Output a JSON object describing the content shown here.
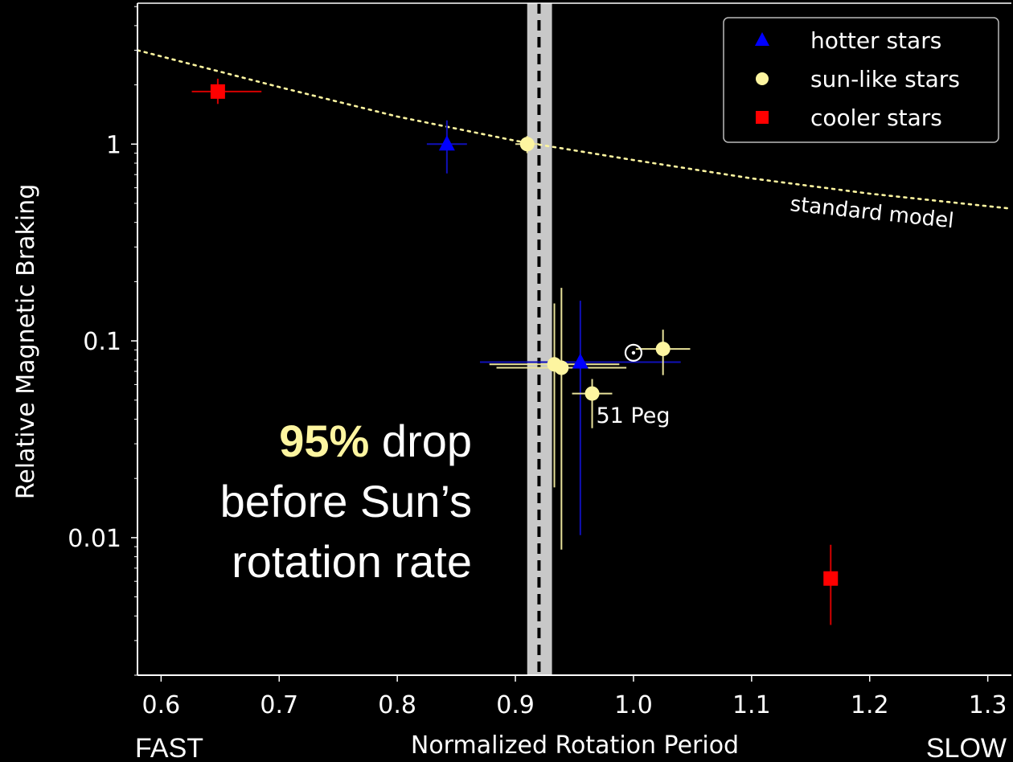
{
  "chart_data": {
    "type": "scatter",
    "xlabel": "Normalized Rotation Period",
    "ylabel": "Relative Magnetic Braking",
    "x_left_label": "FAST",
    "x_right_label": "SLOW",
    "xlim": [
      0.58,
      1.32
    ],
    "ylim": [
      0.002,
      5.2
    ],
    "yscale": "log",
    "x_ticks": [
      {
        "value": 0.6,
        "label": "0.6"
      },
      {
        "value": 0.7,
        "label": "0.7"
      },
      {
        "value": 0.8,
        "label": "0.8"
      },
      {
        "value": 0.9,
        "label": "0.9"
      },
      {
        "value": 1.0,
        "label": "1.0"
      },
      {
        "value": 1.1,
        "label": "1.1"
      },
      {
        "value": 1.2,
        "label": "1.2"
      },
      {
        "value": 1.3,
        "label": "1.3"
      }
    ],
    "y_ticks": [
      {
        "value": 1,
        "label": "1"
      },
      {
        "value": 0.1,
        "label": "0.1"
      },
      {
        "value": 0.01,
        "label": "0.01"
      }
    ],
    "legend_position": "top-right",
    "series": [
      {
        "name": "hotter stars",
        "marker": "triangle",
        "color": "#0000ff",
        "errcolor": "#1010b8",
        "points": [
          {
            "x": 0.842,
            "y": 1.0,
            "xerr": [
              0.017,
              0.017
            ],
            "yerr": [
              0.71,
              1.32
            ]
          },
          {
            "x": 0.955,
            "y": 0.078,
            "xerr": [
              0.085,
              0.085
            ],
            "yerr": [
              0.0103,
              0.16
            ]
          }
        ]
      },
      {
        "name": "sun-like stars",
        "marker": "circle",
        "color": "#fdf5a0",
        "errcolor": "#e8e29a",
        "points": [
          {
            "x": 0.91,
            "y": 1.0,
            "xerr": [
              0.01,
              0.01
            ],
            "yerr": [
              0.9,
              1.1
            ]
          },
          {
            "x": 0.933,
            "y": 0.076,
            "xerr": [
              0.055,
              0.055
            ],
            "yerr": [
              0.018,
              0.155
            ]
          },
          {
            "x": 0.939,
            "y": 0.073,
            "xerr": [
              0.055,
              0.055
            ],
            "yerr": [
              0.0087,
              0.186
            ]
          },
          {
            "x": 0.965,
            "y": 0.054,
            "xerr": [
              0.017,
              0.017
            ],
            "yerr": [
              0.036,
              0.064
            ]
          },
          {
            "x": 1.025,
            "y": 0.091,
            "xerr": [
              0.023,
              0.023
            ],
            "yerr": [
              0.067,
              0.114
            ]
          }
        ]
      },
      {
        "name": "cooler stars",
        "marker": "square",
        "color": "#ff0000",
        "errcolor": "#d40000",
        "points": [
          {
            "x": 0.648,
            "y": 1.85,
            "xerr": [
              0.022,
              0.037
            ],
            "yerr": [
              1.6,
              2.15
            ]
          },
          {
            "x": 1.167,
            "y": 0.0062,
            "xerr": [
              0.0,
              0.0
            ],
            "yerr": [
              0.0036,
              0.0092
            ]
          }
        ]
      }
    ],
    "standard_model": {
      "label": "standard model",
      "color": "#fdf5a0",
      "x": [
        0.58,
        0.7,
        0.8,
        0.9,
        1.0,
        1.1,
        1.2,
        1.32
      ],
      "y": [
        3.0,
        1.95,
        1.38,
        1.04,
        0.83,
        0.67,
        0.56,
        0.47
      ]
    },
    "sun": {
      "x": 1.0,
      "y": 0.087
    },
    "annotation": {
      "text": "51 Peg",
      "x": 0.967,
      "y": 0.037
    },
    "threshold": {
      "x": 0.92,
      "band": [
        0.91,
        0.931
      ]
    },
    "callout": {
      "highlight": "95%",
      "line1_rest": " drop",
      "line2": "before Sun’s",
      "line3": "rotation rate"
    }
  }
}
